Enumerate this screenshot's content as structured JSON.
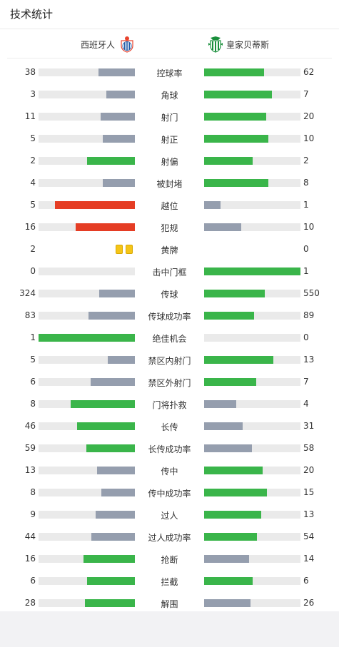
{
  "header": {
    "title": "技术统计"
  },
  "teams": {
    "home": {
      "name": "西班牙人",
      "crest_icon": "espanyol-crest-icon"
    },
    "away": {
      "name": "皇家贝蒂斯",
      "crest_icon": "betis-crest-icon"
    }
  },
  "colors": {
    "win": "#3ab54a",
    "lose": "#959eae",
    "foul": "#e53d24",
    "track": "#eaeaea"
  },
  "stats": [
    {
      "label": "控球率",
      "home": "38",
      "away": "62",
      "home_frac": 0.38,
      "away_frac": 0.62,
      "home_color": "lose",
      "away_color": "win"
    },
    {
      "label": "角球",
      "home": "3",
      "away": "7",
      "home_frac": 0.3,
      "away_frac": 0.7,
      "home_color": "lose",
      "away_color": "win"
    },
    {
      "label": "射门",
      "home": "11",
      "away": "20",
      "home_frac": 0.355,
      "away_frac": 0.645,
      "home_color": "lose",
      "away_color": "win"
    },
    {
      "label": "射正",
      "home": "5",
      "away": "10",
      "home_frac": 0.333,
      "away_frac": 0.667,
      "home_color": "lose",
      "away_color": "win"
    },
    {
      "label": "射偏",
      "home": "2",
      "away": "2",
      "home_frac": 0.5,
      "away_frac": 0.5,
      "home_color": "win",
      "away_color": "win"
    },
    {
      "label": "被封堵",
      "home": "4",
      "away": "8",
      "home_frac": 0.333,
      "away_frac": 0.667,
      "home_color": "lose",
      "away_color": "win"
    },
    {
      "label": "越位",
      "home": "5",
      "away": "1",
      "home_frac": 0.833,
      "away_frac": 0.167,
      "home_color": "foul",
      "away_color": "lose"
    },
    {
      "label": "犯规",
      "home": "16",
      "away": "10",
      "home_frac": 0.615,
      "away_frac": 0.385,
      "home_color": "foul",
      "away_color": "lose"
    },
    {
      "label": "黄牌",
      "home": "2",
      "away": "0",
      "home_frac": 0,
      "away_frac": 0,
      "home_color": "none",
      "away_color": "none",
      "cards": 2
    },
    {
      "label": "击中门框",
      "home": "0",
      "away": "1",
      "home_frac": 0,
      "away_frac": 1,
      "home_color": "lose",
      "away_color": "win"
    },
    {
      "label": "传球",
      "home": "324",
      "away": "550",
      "home_frac": 0.371,
      "away_frac": 0.629,
      "home_color": "lose",
      "away_color": "win"
    },
    {
      "label": "传球成功率",
      "home": "83",
      "away": "89",
      "home_frac": 0.483,
      "away_frac": 0.517,
      "home_color": "lose",
      "away_color": "win"
    },
    {
      "label": "绝佳机会",
      "home": "1",
      "away": "0",
      "home_frac": 1,
      "away_frac": 0,
      "home_color": "win",
      "away_color": "lose"
    },
    {
      "label": "禁区内射门",
      "home": "5",
      "away": "13",
      "home_frac": 0.278,
      "away_frac": 0.722,
      "home_color": "lose",
      "away_color": "win"
    },
    {
      "label": "禁区外射门",
      "home": "6",
      "away": "7",
      "home_frac": 0.462,
      "away_frac": 0.538,
      "home_color": "lose",
      "away_color": "win"
    },
    {
      "label": "门将扑救",
      "home": "8",
      "away": "4",
      "home_frac": 0.667,
      "away_frac": 0.333,
      "home_color": "win",
      "away_color": "lose"
    },
    {
      "label": "长传",
      "home": "46",
      "away": "31",
      "home_frac": 0.597,
      "away_frac": 0.403,
      "home_color": "win",
      "away_color": "lose"
    },
    {
      "label": "长传成功率",
      "home": "59",
      "away": "58",
      "home_frac": 0.504,
      "away_frac": 0.496,
      "home_color": "win",
      "away_color": "lose"
    },
    {
      "label": "传中",
      "home": "13",
      "away": "20",
      "home_frac": 0.394,
      "away_frac": 0.606,
      "home_color": "lose",
      "away_color": "win"
    },
    {
      "label": "传中成功率",
      "home": "8",
      "away": "15",
      "home_frac": 0.348,
      "away_frac": 0.652,
      "home_color": "lose",
      "away_color": "win"
    },
    {
      "label": "过人",
      "home": "9",
      "away": "13",
      "home_frac": 0.409,
      "away_frac": 0.591,
      "home_color": "lose",
      "away_color": "win"
    },
    {
      "label": "过人成功率",
      "home": "44",
      "away": "54",
      "home_frac": 0.449,
      "away_frac": 0.551,
      "home_color": "lose",
      "away_color": "win"
    },
    {
      "label": "抢断",
      "home": "16",
      "away": "14",
      "home_frac": 0.533,
      "away_frac": 0.467,
      "home_color": "win",
      "away_color": "lose"
    },
    {
      "label": "拦截",
      "home": "6",
      "away": "6",
      "home_frac": 0.5,
      "away_frac": 0.5,
      "home_color": "win",
      "away_color": "win"
    },
    {
      "label": "解围",
      "home": "28",
      "away": "26",
      "home_frac": 0.519,
      "away_frac": 0.481,
      "home_color": "win",
      "away_color": "lose"
    }
  ]
}
